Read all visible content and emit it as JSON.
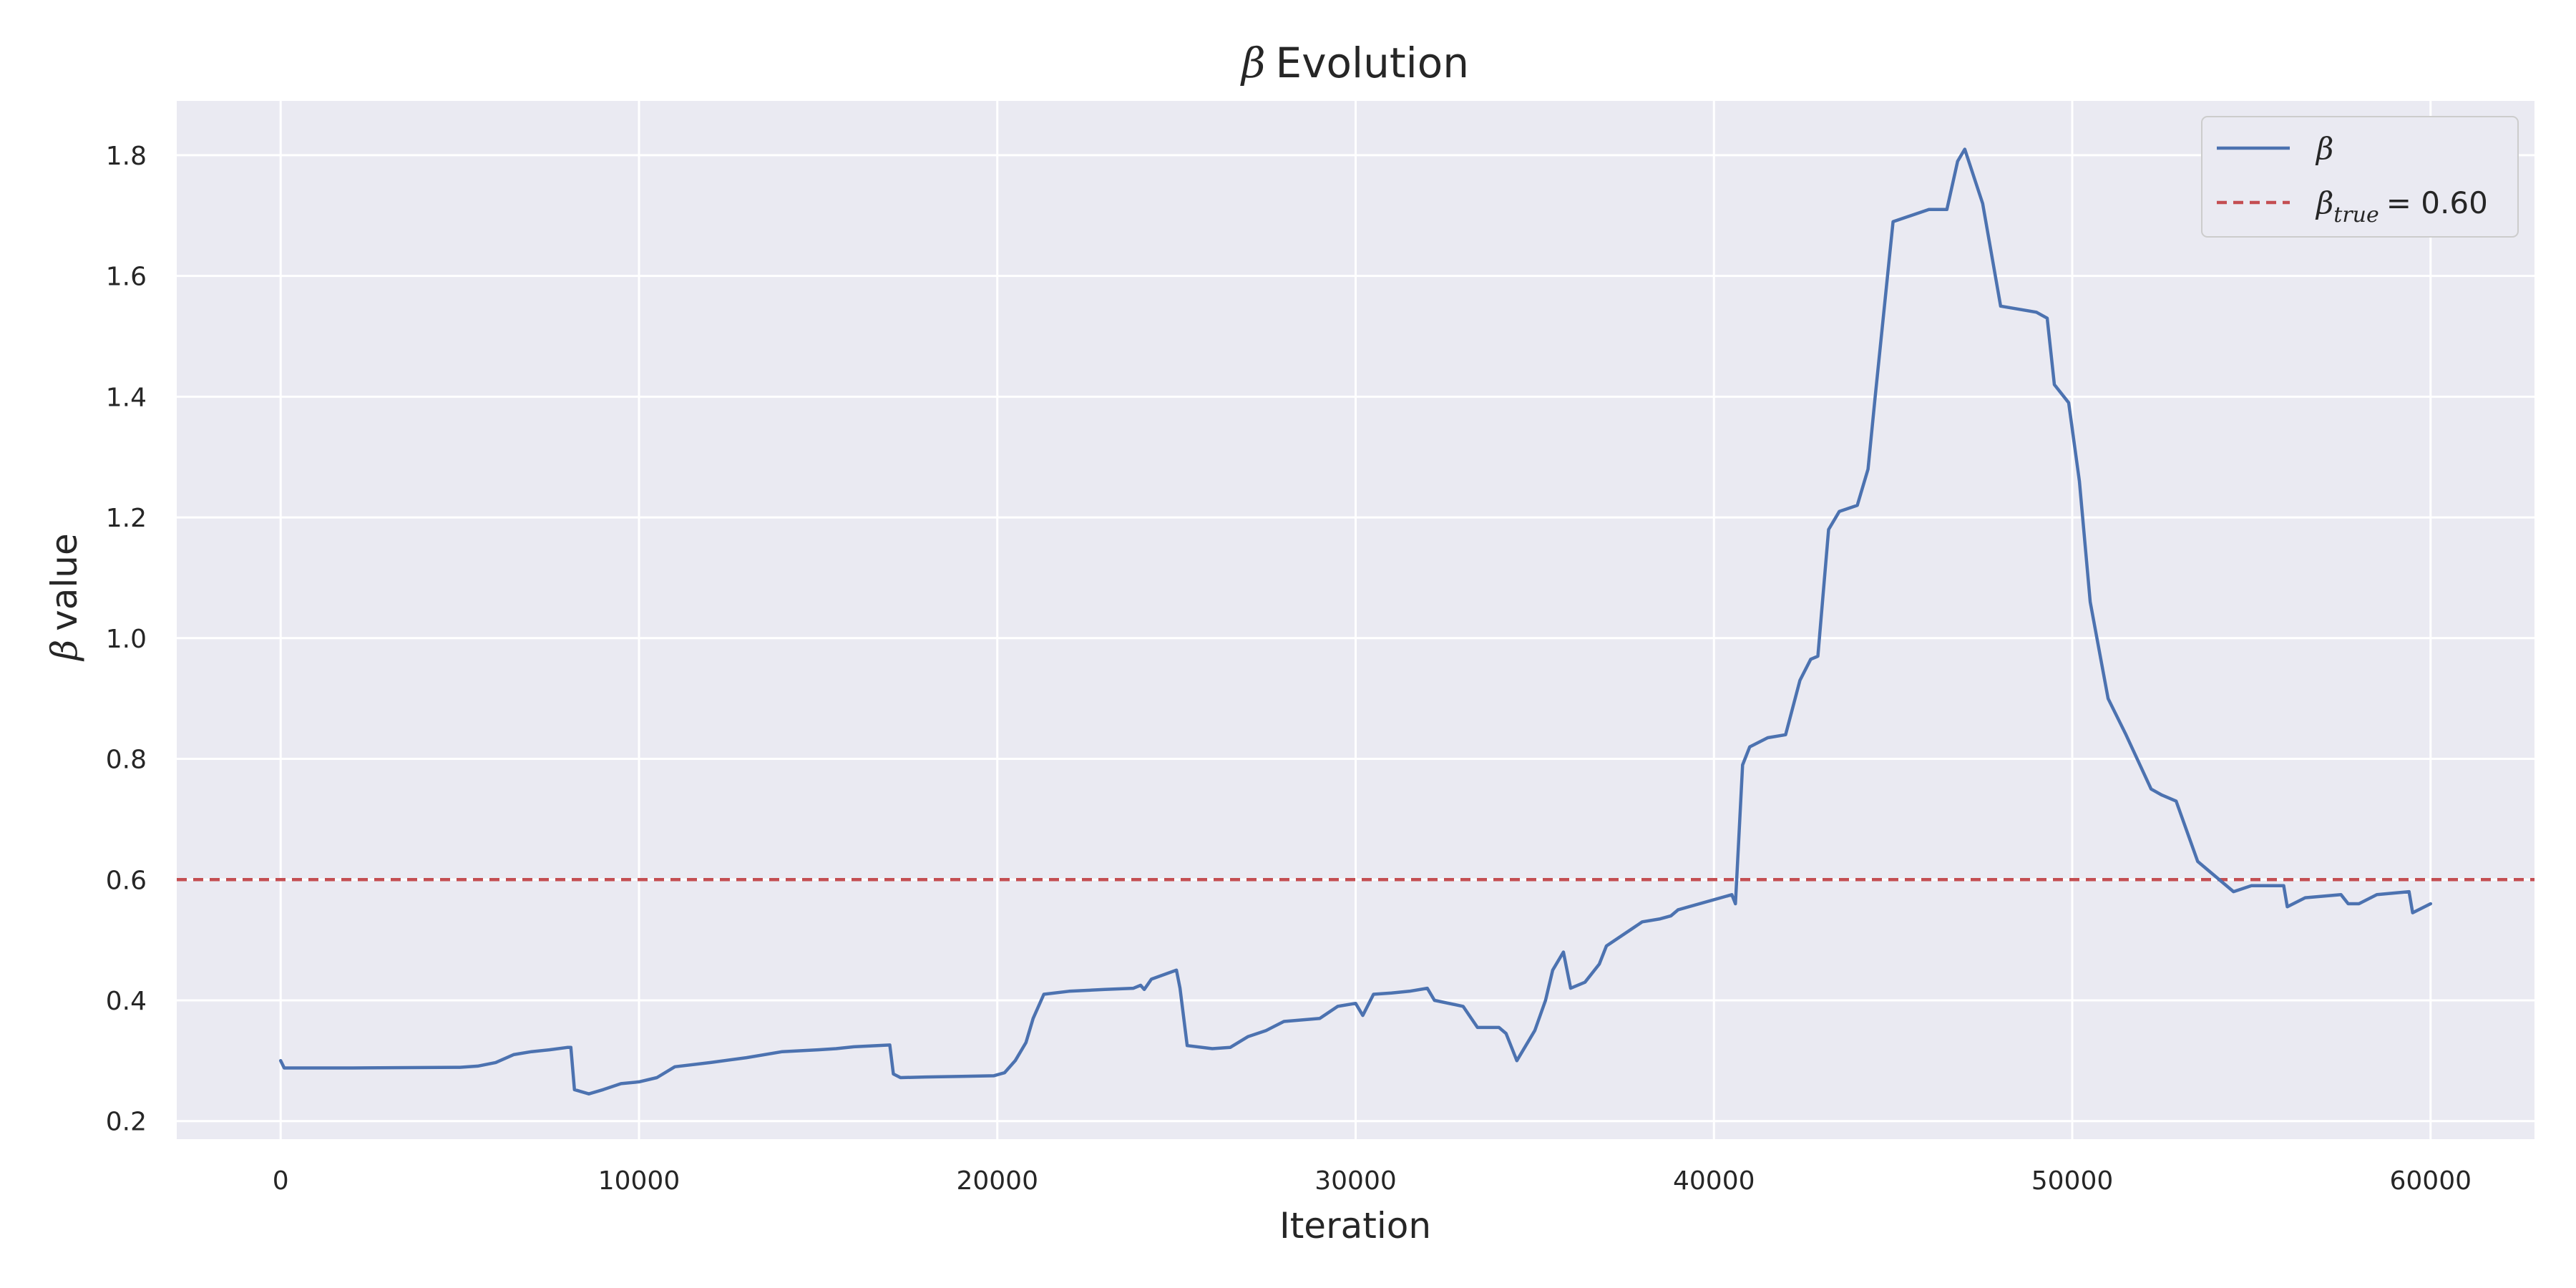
{
  "chart_data": {
    "type": "line",
    "title_symbol": "β",
    "title_text": "Evolution",
    "xlabel": "Iteration",
    "ylabel_symbol": "β",
    "ylabel_text": "value",
    "xlim": [
      -2900,
      62900
    ],
    "ylim": [
      0.17,
      1.89
    ],
    "x_ticks": [
      0,
      10000,
      20000,
      30000,
      40000,
      50000,
      60000
    ],
    "y_ticks": [
      0.2,
      0.4,
      0.6,
      0.8,
      1.0,
      1.2,
      1.4,
      1.6,
      1.8
    ],
    "grid": true,
    "legend_position": "top-right",
    "reference_line": {
      "y": 0.6,
      "legend_symbol": "β",
      "legend_subscript": "true",
      "legend_value": "= 0.60",
      "color": "#c44e52",
      "style": "dashed"
    },
    "series": [
      {
        "legend_symbol": "β",
        "color": "#4c72b0",
        "x": [
          0,
          100,
          300,
          2000,
          5000,
          5500,
          6000,
          6500,
          7000,
          7500,
          8000,
          8100,
          8200,
          8600,
          9000,
          9500,
          10000,
          10500,
          11000,
          12000,
          13000,
          14000,
          15000,
          15500,
          16000,
          17000,
          17100,
          17300,
          18000,
          19000,
          19900,
          20200,
          20500,
          20800,
          21000,
          21300,
          22000,
          23000,
          23800,
          24000,
          24100,
          24300,
          25000,
          25100,
          25300,
          26000,
          26500,
          27000,
          27500,
          28000,
          29000,
          29500,
          30000,
          30200,
          30500,
          31000,
          31500,
          32000,
          32200,
          33000,
          33400,
          34000,
          34200,
          34500,
          35000,
          35300,
          35500,
          35800,
          36000,
          36400,
          36800,
          37000,
          38000,
          38500,
          38800,
          39000,
          40500,
          40600,
          40800,
          41000,
          41500,
          42000,
          42400,
          42700,
          42900,
          43200,
          43500,
          44000,
          44300,
          44500,
          45000,
          46000,
          46500,
          46800,
          47000,
          47500,
          48000,
          49000,
          49300,
          49500,
          49900,
          50200,
          50500,
          51000,
          51500,
          52200,
          52500,
          52900,
          53500,
          54500,
          55000,
          55900,
          56000,
          56500,
          57500,
          57700,
          58000,
          58500,
          59400,
          59500,
          60000
        ],
        "values": [
          0.3,
          0.288,
          0.288,
          0.288,
          0.289,
          0.291,
          0.297,
          0.31,
          0.315,
          0.318,
          0.322,
          0.322,
          0.252,
          0.245,
          0.252,
          0.262,
          0.265,
          0.272,
          0.29,
          0.297,
          0.305,
          0.315,
          0.318,
          0.32,
          0.323,
          0.326,
          0.278,
          0.272,
          0.273,
          0.274,
          0.275,
          0.28,
          0.3,
          0.33,
          0.37,
          0.41,
          0.415,
          0.418,
          0.42,
          0.425,
          0.418,
          0.435,
          0.45,
          0.42,
          0.325,
          0.32,
          0.322,
          0.34,
          0.35,
          0.365,
          0.37,
          0.39,
          0.395,
          0.375,
          0.41,
          0.412,
          0.415,
          0.42,
          0.4,
          0.39,
          0.355,
          0.355,
          0.345,
          0.3,
          0.35,
          0.4,
          0.45,
          0.48,
          0.42,
          0.43,
          0.46,
          0.49,
          0.53,
          0.535,
          0.54,
          0.55,
          0.575,
          0.56,
          0.79,
          0.82,
          0.835,
          0.84,
          0.93,
          0.965,
          0.97,
          1.18,
          1.21,
          1.22,
          1.28,
          1.4,
          1.69,
          1.71,
          1.71,
          1.79,
          1.81,
          1.72,
          1.55,
          1.54,
          1.53,
          1.42,
          1.39,
          1.26,
          1.06,
          0.9,
          0.84,
          0.75,
          0.74,
          0.73,
          0.63,
          0.58,
          0.59,
          0.59,
          0.555,
          0.57,
          0.575,
          0.56,
          0.56,
          0.575,
          0.58,
          0.545,
          0.56
        ]
      }
    ]
  }
}
